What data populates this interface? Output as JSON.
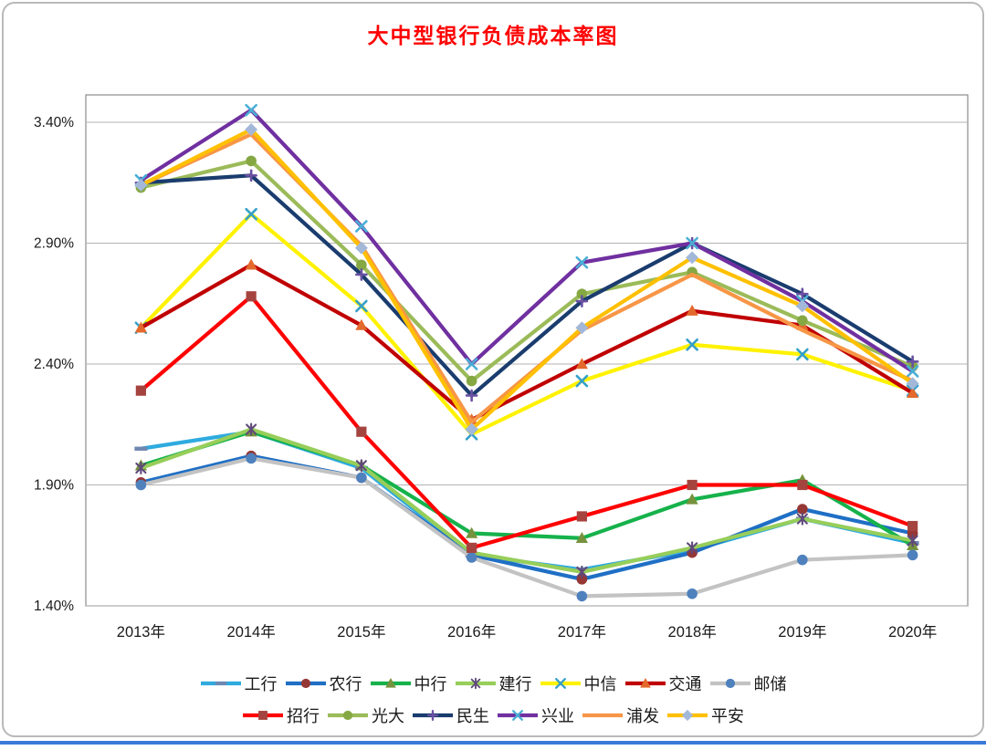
{
  "page": {
    "background": "#ffffff",
    "card_border_color": "#b9b9b9",
    "bottom_rule_color": "#3a7ad9"
  },
  "chart_data": {
    "type": "line",
    "title": "大中型银行负债成本率图",
    "title_color": "#ff0000",
    "xlabel": "",
    "ylabel": "",
    "categories": [
      "2013年",
      "2014年",
      "2015年",
      "2016年",
      "2017年",
      "2018年",
      "2019年",
      "2020年"
    ],
    "y_ticks": [
      {
        "label": "3.40%",
        "value": 3.4
      },
      {
        "label": "2.90%",
        "value": 2.9
      },
      {
        "label": "2.40%",
        "value": 2.4
      },
      {
        "label": "1.90%",
        "value": 1.9
      },
      {
        "label": "1.40%",
        "value": 1.4
      }
    ],
    "ylim": [
      1.4,
      3.4
    ],
    "unit": "%",
    "grid": true,
    "grid_color": "#b3b3b3",
    "axis_color": "#8c8c8c",
    "legend_position": "bottom",
    "legend_rows": [
      [
        0,
        1,
        2,
        3,
        4,
        5,
        6
      ],
      [
        7,
        8,
        9,
        10,
        11,
        12
      ]
    ],
    "series": [
      {
        "name": "工行",
        "color": "#2fabdf",
        "marker": "dash",
        "marker_color": "#7087b0",
        "values": [
          2.05,
          2.12,
          1.97,
          1.61,
          1.55,
          1.63,
          1.76,
          1.66
        ]
      },
      {
        "name": "农行",
        "color": "#1f6fc5",
        "marker": "circle",
        "marker_color": "#953735",
        "values": [
          1.91,
          2.02,
          1.93,
          1.61,
          1.51,
          1.62,
          1.8,
          1.7
        ]
      },
      {
        "name": "中行",
        "color": "#16b24b",
        "marker": "triangle",
        "marker_color": "#76923c",
        "values": [
          1.98,
          2.12,
          1.98,
          1.7,
          1.68,
          1.84,
          1.92,
          1.65
        ]
      },
      {
        "name": "建行",
        "color": "#97ce5a",
        "marker": "asterisk",
        "marker_color": "#5f497a",
        "values": [
          1.97,
          2.13,
          1.98,
          1.62,
          1.54,
          1.64,
          1.76,
          1.67
        ]
      },
      {
        "name": "中信",
        "color": "#fff200",
        "marker": "x",
        "marker_color": "#35a0c9",
        "values": [
          2.55,
          3.02,
          2.64,
          2.11,
          2.33,
          2.48,
          2.44,
          2.29
        ]
      },
      {
        "name": "交通",
        "color": "#c00000",
        "marker": "triangle",
        "marker_color": "#e3692c",
        "values": [
          2.55,
          2.81,
          2.56,
          2.17,
          2.4,
          2.62,
          2.56,
          2.28
        ]
      },
      {
        "name": "邮储",
        "color": "#c3c3c3",
        "marker": "circle",
        "marker_color": "#4f81bd",
        "values": [
          1.9,
          2.01,
          1.93,
          1.6,
          1.44,
          1.45,
          1.59,
          1.61
        ]
      },
      {
        "name": "招行",
        "color": "#ff0000",
        "marker": "square",
        "marker_color": "#a5443f",
        "values": [
          2.29,
          2.68,
          2.12,
          1.64,
          1.77,
          1.9,
          1.9,
          1.73
        ]
      },
      {
        "name": "光大",
        "color": "#9bbb59",
        "marker": "circle",
        "marker_color": "#85a843",
        "values": [
          3.13,
          3.24,
          2.81,
          2.33,
          2.69,
          2.78,
          2.58,
          2.39
        ]
      },
      {
        "name": "民生",
        "color": "#1a3c6e",
        "marker": "plus",
        "marker_color": "#6a51a3",
        "values": [
          3.15,
          3.18,
          2.77,
          2.27,
          2.66,
          2.9,
          2.69,
          2.41
        ]
      },
      {
        "name": "兴业",
        "color": "#7030a0",
        "marker": "x",
        "marker_color": "#4aafd5",
        "values": [
          3.16,
          3.45,
          2.97,
          2.4,
          2.82,
          2.9,
          2.66,
          2.37
        ]
      },
      {
        "name": "浦发",
        "color": "#f79646",
        "marker": "none",
        "marker_color": "#f79646",
        "values": [
          3.14,
          3.35,
          2.89,
          2.16,
          2.54,
          2.77,
          2.54,
          2.33
        ]
      },
      {
        "name": "平安",
        "color": "#ffc000",
        "marker": "diamond",
        "marker_color": "#a3b8d9",
        "values": [
          3.14,
          3.37,
          2.88,
          2.13,
          2.55,
          2.84,
          2.64,
          2.32
        ]
      }
    ]
  }
}
